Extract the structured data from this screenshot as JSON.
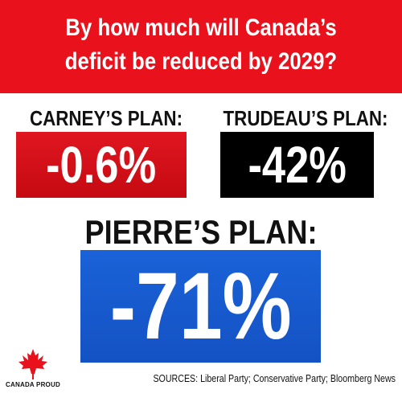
{
  "header": {
    "line1": "By how much will Canada’s",
    "line2": "deficit be reduced by 2029?",
    "background": "#e8111c"
  },
  "plans": {
    "carney": {
      "label": "CARNEY’S PLAN:",
      "value": "-0.6%",
      "color": "#d10f18"
    },
    "trudeau": {
      "label": "TRUDEAU’S PLAN:",
      "value": "-42%",
      "color": "#000000"
    },
    "pierre": {
      "label": "PIERRE’S PLAN:",
      "value": "-71%",
      "color": "#1759cf"
    }
  },
  "logo": {
    "text": "CANADA PROUD",
    "icon": "maple-leaf-icon",
    "color": "#e8111c"
  },
  "footer": {
    "sources": "SOURCES: Liberal Party; Conservative Party; Bloomberg News"
  }
}
